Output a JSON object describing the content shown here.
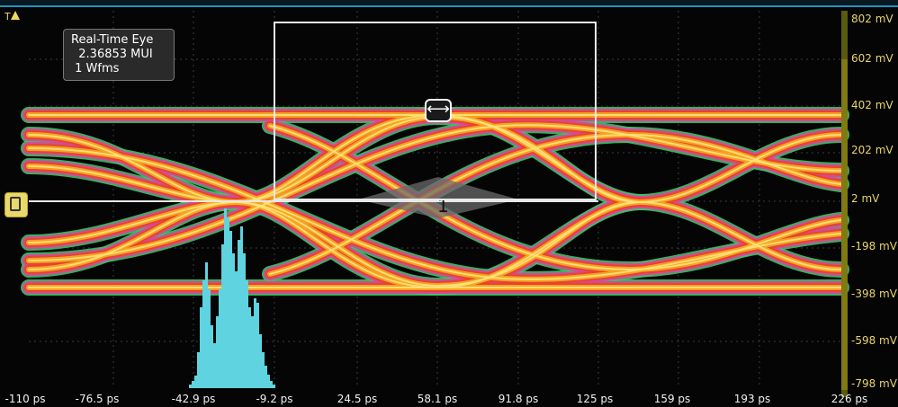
{
  "readout": {
    "title": "Real-Time Eye",
    "mui": "2.36853 MUI",
    "wfms": "1 Wfms"
  },
  "trigger": {
    "label": "T"
  },
  "y_axis": [
    "802 mV",
    "602 mV",
    "402 mV",
    "202 mV",
    "2 mV",
    "-198 mV",
    "-398 mV",
    "-598 mV",
    "-798 mV"
  ],
  "x_axis": [
    "-110 ps",
    "-76.5 ps",
    "-42.9 ps",
    "-9.2 ps",
    "24.5 ps",
    "58.1 ps",
    "91.8 ps",
    "125 ps",
    "159 ps",
    "193 ps",
    "226 ps"
  ],
  "channel_label": "1",
  "colors": {
    "trace_green": "#3cc46a",
    "trace_magenta": "#e0439a",
    "trace_red": "#e8432a",
    "trace_orange": "#f5a623",
    "trace_yellow": "#ffe27a",
    "histogram": "#5fd3df",
    "axis_yellow": "#e8d46a"
  }
}
